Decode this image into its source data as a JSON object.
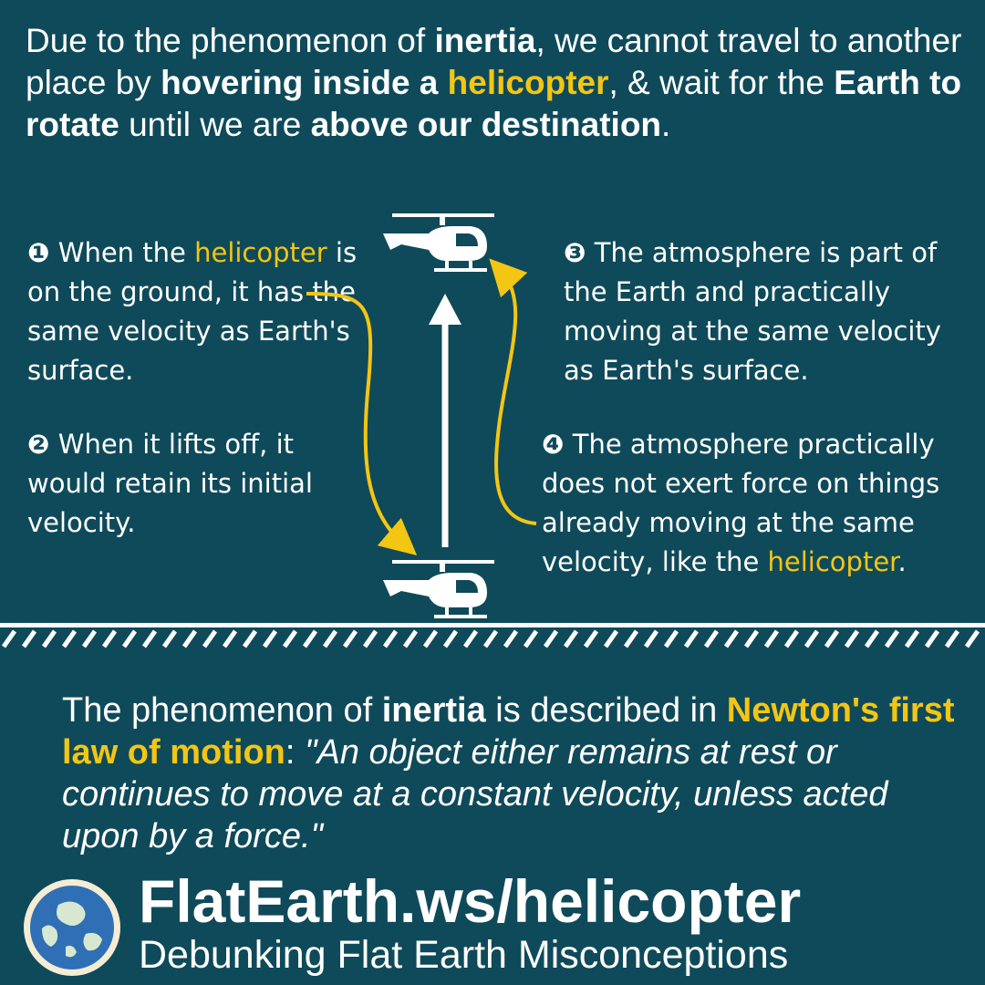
{
  "headline": {
    "p1": "Due to the phenomenon of ",
    "b1": "inertia",
    "p2": ", we cannot travel to another place by ",
    "b2": "hovering inside a ",
    "b3": "helicopter",
    "p3": ", & wait for the ",
    "b4": "Earth to rotate",
    "p4": " until we are ",
    "b5": "above our destination",
    "p5": "."
  },
  "notes": [
    {
      "num": "❶",
      "text1": " When the ",
      "hl": "helicopter",
      "text2": " is on the ground, it has the same velocity as Earth's surface."
    },
    {
      "num": "❷",
      "text1": " When it lifts off, it would retain its initial velocity.",
      "hl": "",
      "text2": ""
    },
    {
      "num": "❸",
      "text1": " The atmosphere is part of the Earth and practically moving at the same velocity as Earth's surface.",
      "hl": "",
      "text2": ""
    },
    {
      "num": "❹",
      "text1": " The atmosphere practically does not exert force on things already moving at the same velocity, like the ",
      "hl": "helicopter",
      "text2": "."
    }
  ],
  "quote": {
    "p1": "The phenomenon of ",
    "b1": "inertia",
    "p2": " is described in ",
    "b2": "Newton's first law of motion",
    "p3": ": ",
    "i1": "\"An object either remains at rest or continues to move at a constant velocity, unless acted upon by a force.\""
  },
  "footer": {
    "url": "FlatEarth.ws/helicopter",
    "tagline": "Debunking Flat Earth Misconceptions"
  },
  "colors": {
    "background": "#0f4a5a",
    "accent": "#f3c614",
    "text": "#ffffff"
  },
  "icons": [
    "helicopter-icon",
    "up-arrow-icon",
    "curved-arrow-icon",
    "globe-icon"
  ]
}
